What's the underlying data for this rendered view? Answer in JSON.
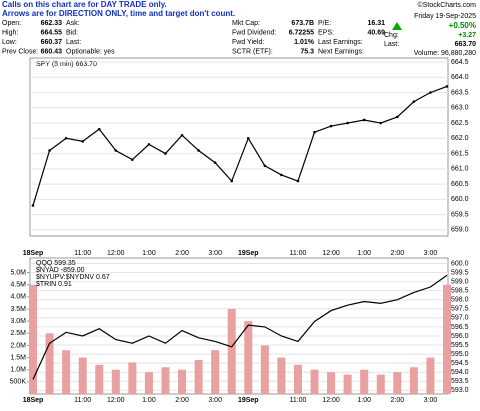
{
  "notes": [
    "Calls on this chart are for DAY TRADE only.",
    "Arrows are for DIRECTION ONLY, time and target don't count."
  ],
  "copyright": "©StockCharts.com",
  "date": "Friday 19-Sep-2025",
  "header": {
    "rows": [
      [
        "Open:",
        "662.33",
        "Ask:",
        "Mkt Cap:",
        "673.7B",
        "P/E:",
        "16.31"
      ],
      [
        "High:",
        "664.55",
        "Bid:",
        "Fwd Dividend:",
        "6.72255",
        "EPS:",
        "40.69"
      ],
      [
        "Low:",
        "660.37",
        "Last:",
        "Fwd Yield:",
        "1.01%",
        "Last Earnings:",
        ""
      ],
      [
        "Prev Close:",
        "660.43",
        "Optionable: yes",
        "SCTR (ETF):",
        "75.3",
        "Next Earnings:",
        ""
      ]
    ],
    "change_pct": "+0.50%",
    "change": [
      "Chg:",
      "+3.27"
    ],
    "last": [
      "Last:",
      "663.70"
    ],
    "volume": "Volume: 96,880,280"
  },
  "chart_data": [
    {
      "type": "line",
      "legend": "SPY (5 min) 663.70",
      "categories": [
        "18Sep",
        null,
        null,
        "11:00",
        null,
        "12:00",
        null,
        "1:00",
        null,
        "2:00",
        null,
        "3:00",
        null,
        "19Sep",
        null,
        null,
        "11:00",
        null,
        "12:00",
        null,
        "1:00",
        null,
        "2:00",
        null,
        "3:00",
        null
      ],
      "series": [
        {
          "name": "SPY",
          "color": "#000000",
          "values": [
            659.8,
            661.6,
            662.0,
            661.9,
            662.3,
            661.6,
            661.3,
            661.8,
            661.5,
            662.1,
            661.6,
            661.2,
            660.6,
            662.0,
            661.1,
            660.8,
            660.6,
            662.2,
            662.4,
            662.5,
            662.6,
            662.5,
            662.7,
            663.2,
            663.5,
            663.7
          ]
        }
      ],
      "ylim": [
        658.8,
        664.63
      ],
      "yticks": [
        {
          "value": 659,
          "label": "659.0"
        },
        659.5,
        {
          "value": 660,
          "label": "660.0"
        },
        660.5,
        {
          "value": 661,
          "label": "661.0"
        },
        661.5,
        {
          "value": 662,
          "label": "662.0"
        },
        662.5,
        {
          "value": 663,
          "label": "663.0"
        },
        663.5,
        {
          "value": 664,
          "label": "664.0"
        },
        664.5
      ],
      "grid": true
    },
    {
      "type": "bar-line",
      "legend_texts": [
        "$NYAD -859.00",
        "$NYUPV:$NYDNV 0.67",
        "$TRIN 0.91"
      ],
      "categories": [
        "18Sep",
        null,
        null,
        "11:00",
        null,
        "12:00",
        null,
        "1:00",
        null,
        "2:00",
        null,
        "3:00",
        null,
        "19Sep",
        null,
        null,
        "11:00",
        null,
        "12:00",
        null,
        "1:00",
        null,
        "2:00",
        null,
        "3:00",
        null
      ],
      "series": [
        {
          "name": "QQQ 599.35",
          "color": "#000000",
          "axis": "y2",
          "values": [
            593.6,
            595.6,
            596.2,
            596.0,
            596.4,
            595.8,
            595.6,
            596.0,
            595.6,
            596.3,
            595.9,
            595.7,
            595.4,
            596.6,
            596.5,
            596.0,
            595.7,
            596.8,
            597.4,
            597.7,
            597.9,
            597.8,
            598.0,
            598.4,
            598.7,
            599.35
          ]
        },
        {
          "name": "Volume",
          "color": "#e8a0a0",
          "values": [
            4500000,
            2500000,
            1800000,
            1500000,
            1200000,
            1000000,
            1300000,
            900000,
            1100000,
            1000000,
            1400000,
            1800000,
            3500000,
            3000000,
            2000000,
            1500000,
            1200000,
            1000000,
            900000,
            800000,
            1000000,
            800000,
            900000,
            1100000,
            1500000,
            4500000
          ]
        }
      ],
      "ylim": [
        0,
        5600000
      ],
      "yticks": [
        {
          "value": 500000,
          "label": "500K"
        },
        {
          "value": 1000000,
          "label": "1.0M"
        },
        {
          "value": 1500000,
          "label": "1.5M"
        },
        {
          "value": 2000000,
          "label": "2.0M"
        },
        {
          "value": 2500000,
          "label": "2.5M"
        },
        {
          "value": 3000000,
          "label": "3.0M"
        },
        {
          "value": 3500000,
          "label": "3.5M"
        },
        {
          "value": 4000000,
          "label": "4.0M"
        },
        {
          "value": 4500000,
          "label": "4.5M"
        },
        {
          "value": 5000000,
          "label": "5.0M"
        }
      ],
      "y2lim": [
        592.8,
        600.3
      ],
      "y2ticks": [
        {
          "value": 593,
          "label": "593.0"
        },
        593.5,
        {
          "value": 594,
          "label": "594.0"
        },
        594.5,
        {
          "value": 595,
          "label": "595.0"
        },
        595.5,
        {
          "value": 596,
          "label": "596.0"
        },
        596.5,
        {
          "value": 597,
          "label": "597.0"
        },
        597.5,
        {
          "value": 598,
          "label": "598.0"
        },
        598.5,
        {
          "value": 599,
          "label": "599.0"
        },
        599.5,
        {
          "value": 600,
          "label": "600.0"
        }
      ],
      "grid": true
    }
  ]
}
